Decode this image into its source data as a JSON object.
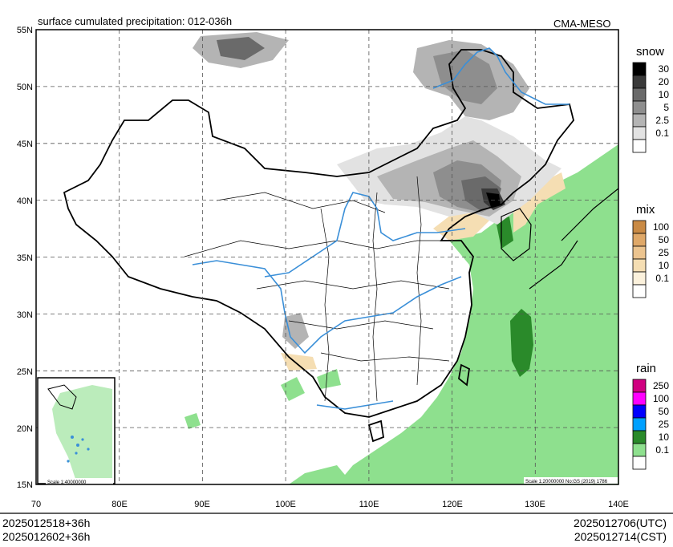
{
  "title": "surface cumulated precipitation: 012-036h",
  "source": "CMA-MESO",
  "lat_ticks": [
    "55N",
    "50N",
    "45N",
    "40N",
    "35N",
    "30N",
    "25N",
    "20N",
    "15N"
  ],
  "lon_ticks": [
    "70",
    "80E",
    "90E",
    "100E",
    "110E",
    "120E",
    "130E",
    "140E"
  ],
  "map_extent": {
    "lon": [
      70,
      140
    ],
    "lat": [
      15,
      55
    ]
  },
  "inset_scale": "Scale 1:40000000",
  "main_scale": "Scale 1:20000000 No:GS (2019) 1786",
  "legends": [
    {
      "title": "snow",
      "levels": [
        "30",
        "20",
        "10",
        "5",
        "2.5",
        "0.1"
      ],
      "colors": [
        "#000000",
        "#3a3a3a",
        "#6a6a6a",
        "#8e8e8e",
        "#b4b4b4",
        "#e2e2e2"
      ]
    },
    {
      "title": "mix",
      "levels": [
        "100",
        "50",
        "25",
        "10",
        "0.1"
      ],
      "colors": [
        "#c98a45",
        "#dfa868",
        "#ecc48f",
        "#f5deb3",
        "#fbf1dc"
      ]
    },
    {
      "title": "rain",
      "levels": [
        "250",
        "100",
        "50",
        "25",
        "10",
        "0.1"
      ],
      "colors": [
        "#d00080",
        "#ff00ff",
        "#0000ff",
        "#00a0ff",
        "#2a8a2a",
        "#8ee08e"
      ]
    }
  ],
  "footer": {
    "init_utc": "2025012518+36h",
    "init_cst": "2025012602+36h",
    "valid_utc": "2025012706(UTC)",
    "valid_cst": "2025012714(CST)"
  },
  "colors": {
    "frame": "#000000",
    "river": "#3a8fd8",
    "grid": "#555555",
    "rain_light": "#8ee08e",
    "rain_mid": "#2a8a2a",
    "mix_light": "#f5deb3"
  }
}
